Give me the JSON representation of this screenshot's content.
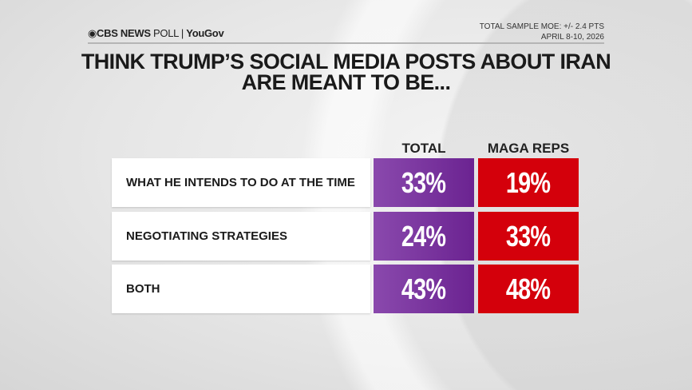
{
  "header": {
    "brand": "CBS NEWS",
    "poll": "POLL",
    "partner": "YouGov",
    "moe": "TOTAL SAMPLE MOE: +/- 2.4 PTS",
    "dates": "APRIL 8-10, 2026"
  },
  "chart_data": {
    "type": "table",
    "title": "THINK TRUMP’S SOCIAL MEDIA POSTS ABOUT IRAN ARE MEANT TO BE...",
    "title_lines": [
      "THINK TRUMP’S SOCIAL MEDIA POSTS ABOUT IRAN",
      "ARE MEANT TO BE..."
    ],
    "columns": [
      "TOTAL",
      "MAGA REPS"
    ],
    "colors": {
      "TOTAL": "#7a35a0",
      "MAGA REPS": "#d4000b"
    },
    "rows": [
      {
        "label": "WHAT HE INTENDS TO DO AT THE TIME",
        "values": [
          "33%",
          "19%"
        ]
      },
      {
        "label": "NEGOTIATING STRATEGIES",
        "values": [
          "24%",
          "33%"
        ]
      },
      {
        "label": "BOTH",
        "values": [
          "43%",
          "48%"
        ]
      }
    ]
  }
}
